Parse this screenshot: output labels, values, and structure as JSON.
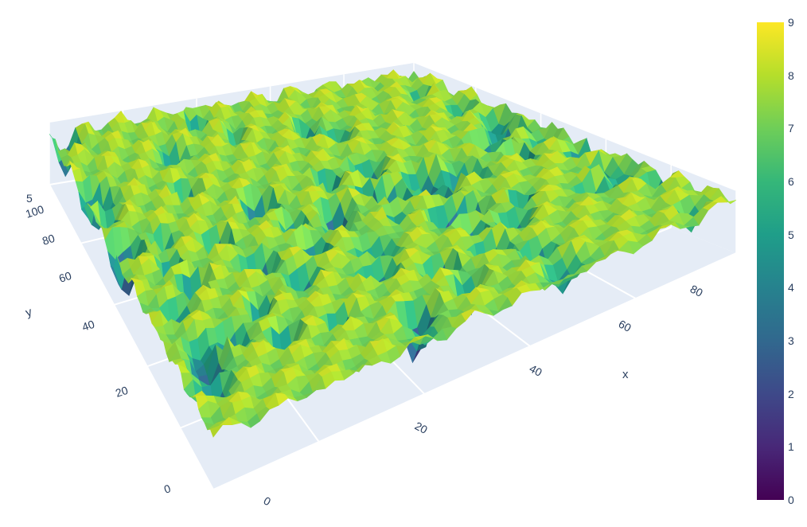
{
  "chart_data": {
    "type": "surface",
    "title": "",
    "colorscale": "viridis",
    "colorscale_stops": [
      "#440154",
      "#482878",
      "#3e4989",
      "#31688e",
      "#26828e",
      "#1f9e89",
      "#35b779",
      "#6ece58",
      "#b5de2b",
      "#fde725"
    ],
    "background_color": "#e5ecf6",
    "grid_color": "#ffffff",
    "x_axis": {
      "title": "x",
      "range": [
        0,
        99
      ],
      "ticks": [
        "0",
        "20",
        "40",
        "60",
        "80"
      ]
    },
    "y_axis": {
      "title": "y",
      "range": [
        0,
        99
      ],
      "ticks": [
        "0",
        "20",
        "40",
        "60",
        "80",
        "100"
      ]
    },
    "z_axis": {
      "title": "",
      "range": [
        0,
        9
      ],
      "visible_ticks": [
        "5"
      ]
    },
    "colorbar": {
      "range": [
        0,
        9
      ],
      "ticks": [
        "0",
        "1",
        "2",
        "3",
        "4",
        "5",
        "6",
        "7",
        "8",
        "9"
      ],
      "position": "right"
    },
    "surface": {
      "grid_size": 100,
      "z_min": 0,
      "z_max": 9,
      "pattern": "egg-crate of periodic pits; mostly high values (7–9) with many conical depressions dropping to 0–3"
    }
  }
}
